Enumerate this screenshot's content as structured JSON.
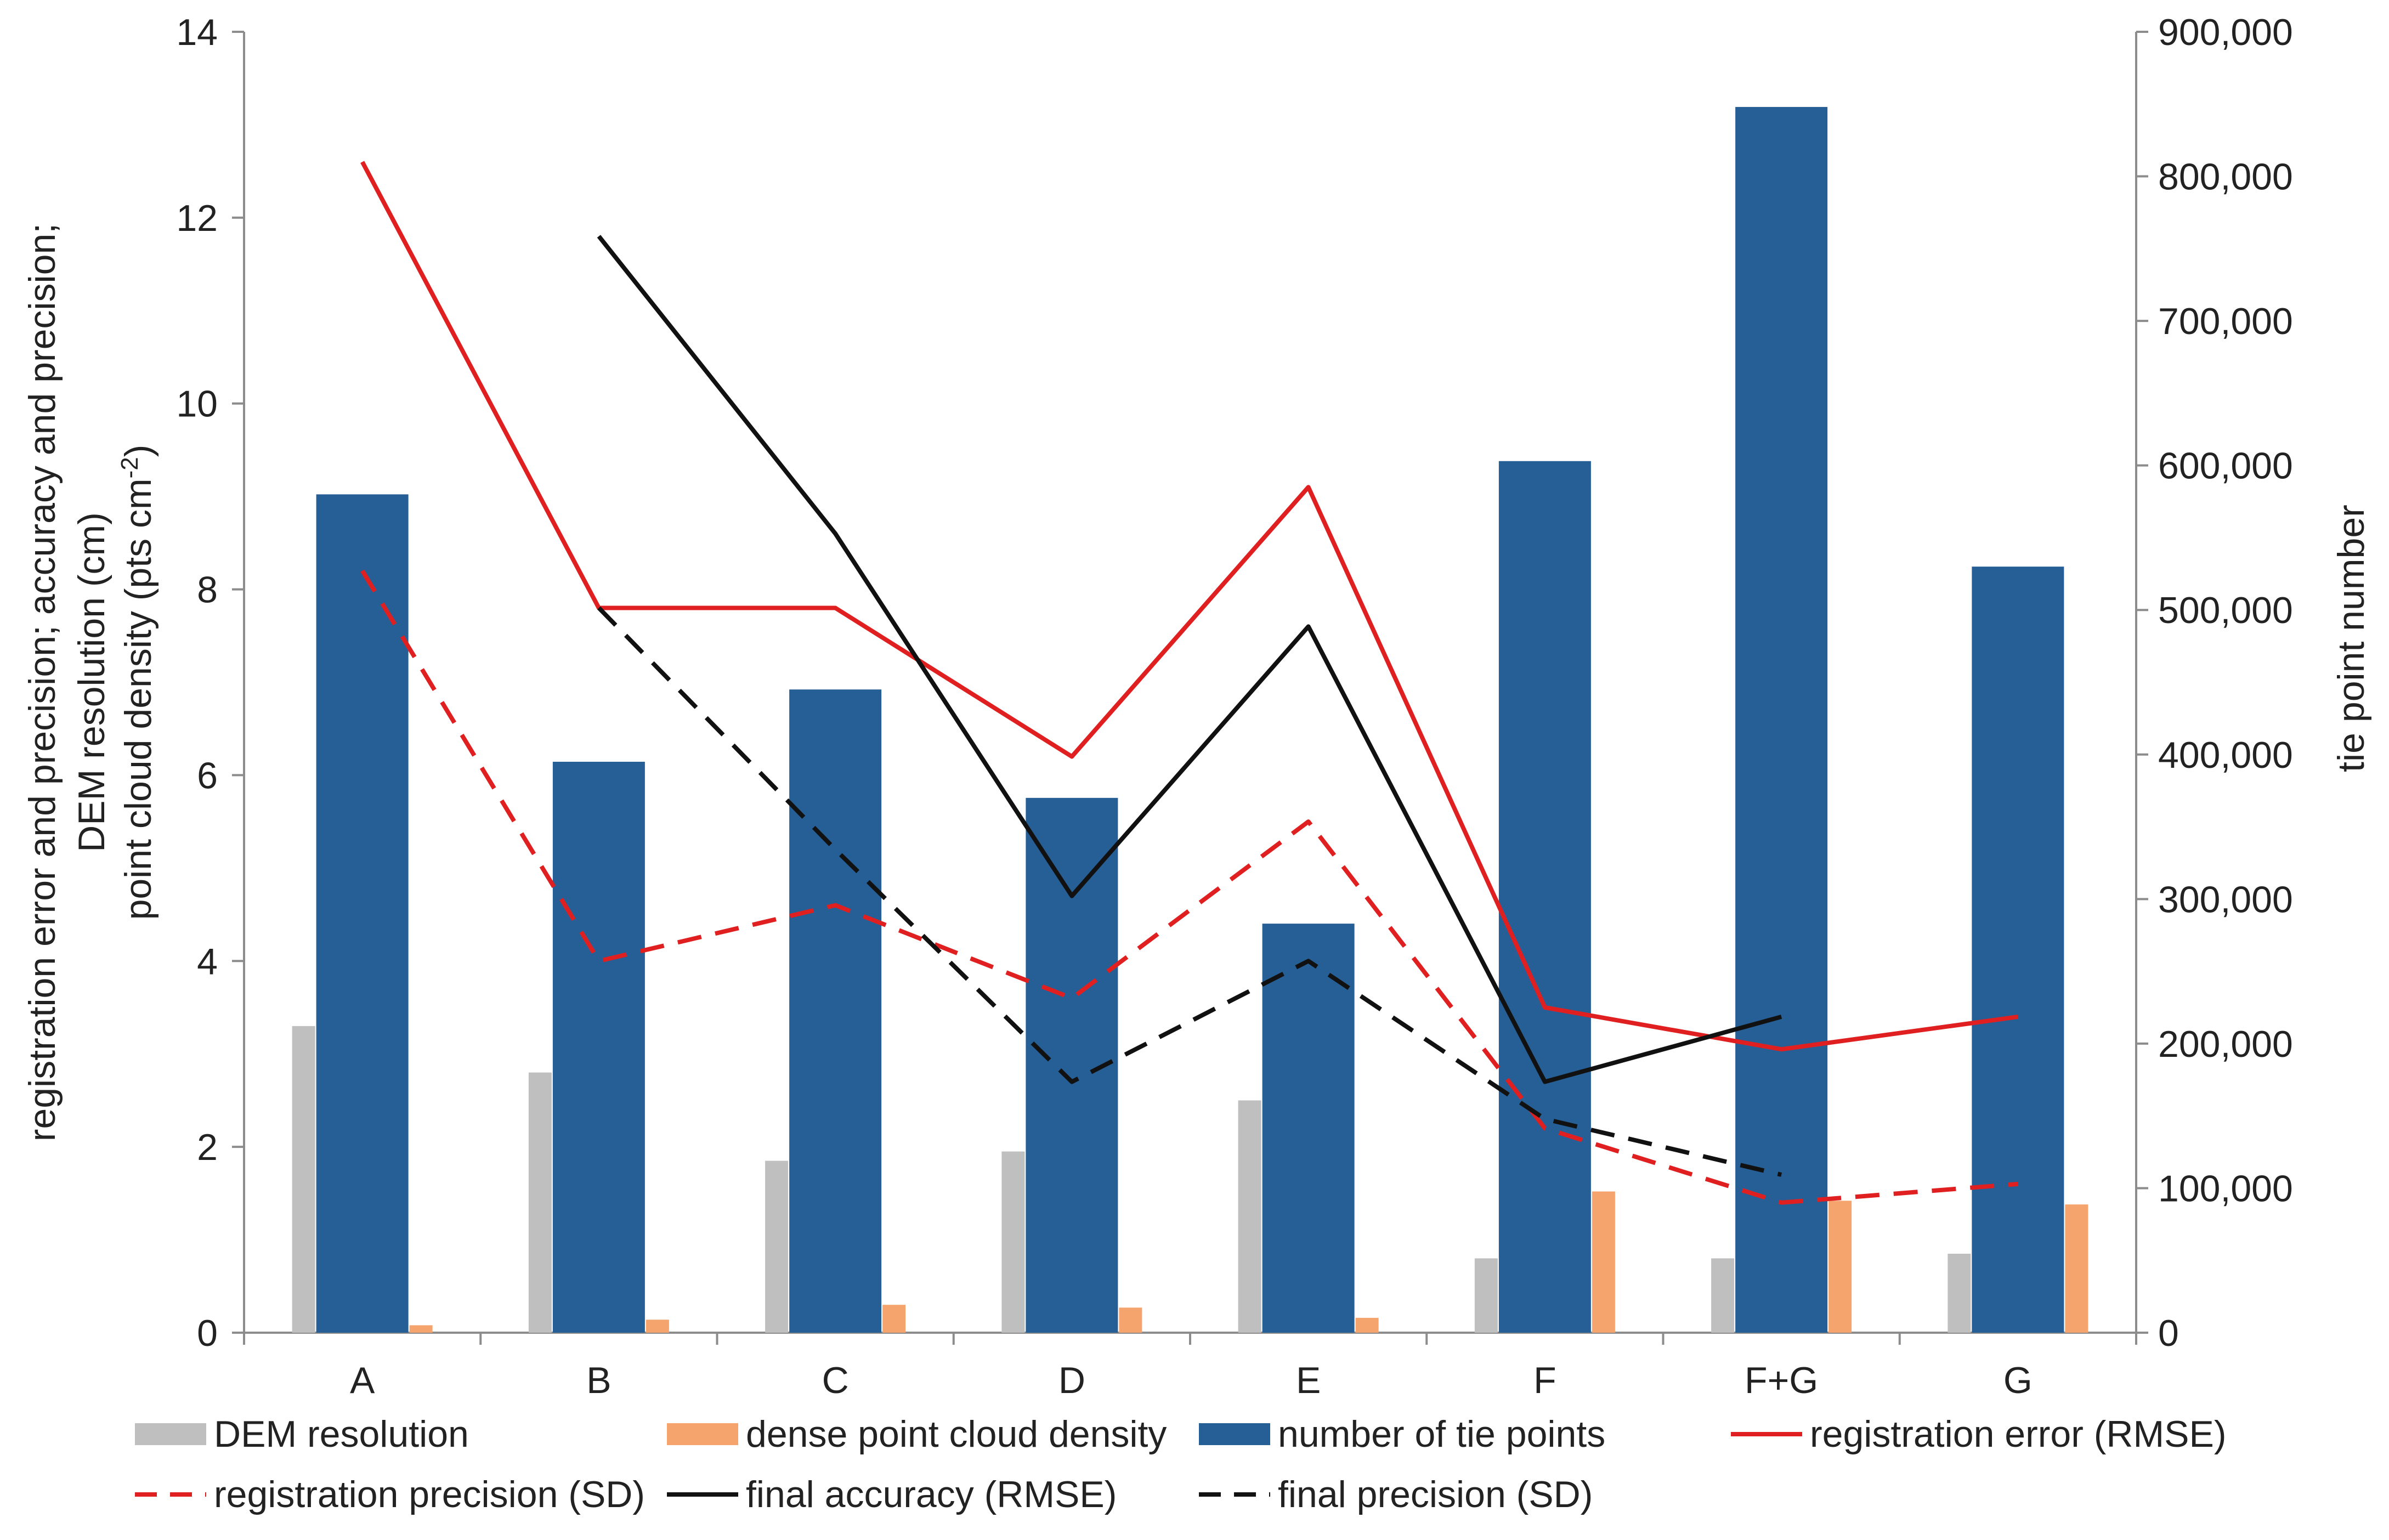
{
  "chart_data": {
    "type": "bar",
    "categories": [
      "A",
      "B",
      "C",
      "D",
      "E",
      "F",
      "F+G",
      "G"
    ],
    "y_left": {
      "label_lines": [
        "registration error and precision; accuracy and precision;",
        "DEM resolution (cm)",
        "point cloud density (pts cm",
        "-2",
        ")"
      ],
      "range": [
        0,
        14
      ],
      "ticks": [
        "0",
        "2",
        "4",
        "6",
        "8",
        "10",
        "12",
        "14"
      ]
    },
    "y_right": {
      "label": "tie point number",
      "range": [
        0,
        900000
      ],
      "ticks": [
        "0",
        "100,000",
        "200,000",
        "300,000",
        "400,000",
        "500,000",
        "600,000",
        "700,000",
        "800,000",
        "900,000"
      ]
    },
    "series": [
      {
        "name": "DEM resolution",
        "kind": "bar",
        "axis": "left",
        "color": "#bfbfbf",
        "values": [
          3.3,
          2.8,
          1.85,
          1.95,
          2.5,
          0.8,
          0.8,
          0.85
        ]
      },
      {
        "name": "dense point cloud density",
        "kind": "bar",
        "axis": "left",
        "color": "#f4a46c",
        "values": [
          0.08,
          0.14,
          0.3,
          0.27,
          0.16,
          1.52,
          1.42,
          1.38
        ]
      },
      {
        "name": "number of tie points",
        "kind": "bar",
        "axis": "right",
        "color": "#265f95",
        "values": [
          580000,
          395000,
          445000,
          370000,
          283000,
          603000,
          848000,
          530000
        ]
      },
      {
        "name": "registration error (RMSE)",
        "kind": "line",
        "axis": "left",
        "color": "#e02020",
        "dash": false,
        "values": [
          12.6,
          7.8,
          7.8,
          6.2,
          9.1,
          3.5,
          3.05,
          3.4
        ]
      },
      {
        "name": "registration precision (SD)",
        "kind": "line",
        "axis": "left",
        "color": "#e02020",
        "dash": true,
        "values": [
          8.2,
          4.0,
          4.6,
          3.6,
          5.5,
          2.2,
          1.4,
          1.6
        ]
      },
      {
        "name": "final accuracy (RMSE)",
        "kind": "line",
        "axis": "left",
        "color": "#111111",
        "dash": false,
        "values": [
          null,
          11.8,
          8.6,
          4.7,
          7.6,
          2.7,
          3.4,
          null
        ]
      },
      {
        "name": "final precision (SD)",
        "kind": "line",
        "axis": "left",
        "color": "#111111",
        "dash": true,
        "values": [
          null,
          7.8,
          5.2,
          2.7,
          4.0,
          2.3,
          1.7,
          null
        ]
      }
    ]
  },
  "legend": {
    "dem_resolution": "DEM resolution",
    "dense_density": "dense point cloud density",
    "tie_points": "number of tie points",
    "reg_error": "registration error (RMSE)",
    "reg_precision": "registration precision (SD)",
    "final_accuracy": "final accuracy (RMSE)",
    "final_precision": "final precision (SD)"
  }
}
